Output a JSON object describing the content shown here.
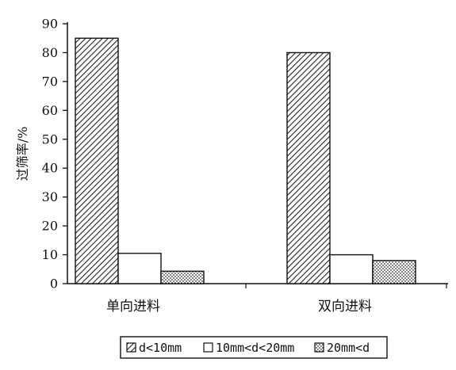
{
  "chart_data": {
    "type": "bar",
    "title": "",
    "xlabel": "",
    "ylabel": "过筛率/%",
    "ylim": [
      0,
      90
    ],
    "yticks": [
      0,
      10,
      20,
      30,
      40,
      50,
      60,
      70,
      80,
      90
    ],
    "grid": false,
    "legend_position": "bottom",
    "categories": [
      "单向进料",
      "双向进料"
    ],
    "series": [
      {
        "name": "d<10mm",
        "values": [
          85,
          80
        ],
        "pattern": "diagonal-hatch"
      },
      {
        "name": "10mm<d<20mm",
        "values": [
          10.5,
          10
        ],
        "pattern": "white"
      },
      {
        "name": "20mm<d",
        "values": [
          4.3,
          8
        ],
        "pattern": "dots"
      }
    ]
  },
  "colors": {
    "axis": "#111111",
    "bar_stroke": "#111111",
    "hatch": "#222222",
    "dots": "#333333",
    "background": "#ffffff"
  }
}
